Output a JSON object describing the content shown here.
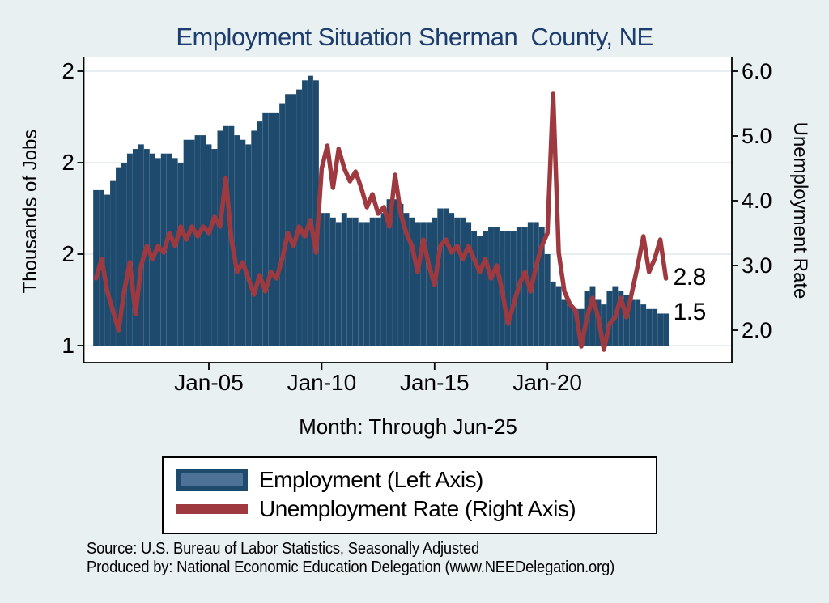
{
  "title": "Employment Situation Sherman  County, NE",
  "axes": {
    "left": {
      "title": "Thousands of Jobs",
      "ticks": [
        {
          "value": 2.0,
          "label": "2"
        },
        {
          "value": 1.8,
          "label": "2"
        },
        {
          "value": 1.6,
          "label": "2"
        },
        {
          "value": 1.4,
          "label": "1"
        }
      ]
    },
    "right": {
      "title": "Unemployment Rate",
      "ticks": [
        {
          "value": 6.0,
          "label": "6.0"
        },
        {
          "value": 5.0,
          "label": "5.0"
        },
        {
          "value": 4.0,
          "label": "4.0"
        },
        {
          "value": 3.0,
          "label": "3.0"
        },
        {
          "value": 2.0,
          "label": "2.0"
        }
      ]
    },
    "x": {
      "title": "Month: Through Jun-25",
      "ticks": [
        {
          "t": 2005,
          "label": "Jan-05"
        },
        {
          "t": 2010,
          "label": "Jan-10"
        },
        {
          "t": 2015,
          "label": "Jan-15"
        },
        {
          "t": 2020,
          "label": "Jan-20"
        }
      ]
    }
  },
  "annotations": {
    "unemployment_last": "2.8",
    "employment_last": "1.5"
  },
  "legend": {
    "employment_label": "Employment (Left Axis)",
    "unemployment_label": "Unemployment Rate (Right Axis)"
  },
  "footer": {
    "line1": "Source: U.S. Bureau of Labor Statistics, Seasonally Adjusted",
    "line2": "Produced by: National Economic Education Delegation (www.NEEDelegation.org)"
  },
  "colors": {
    "background": "#e9f0f2",
    "plot_background": "#ffffff",
    "gridline": "#dde8ee",
    "bar": "#1e4a6d",
    "bar_swatch_inner": "#4e7296",
    "line": "#9e3a3f",
    "title_text": "#1c3d6e",
    "axis_text": "#000000"
  },
  "chart_data": {
    "type": "combo",
    "title": "Employment Situation Sherman  County, NE",
    "xlabel": "Month: Through Jun-25",
    "x_tick_labels": [
      "Jan-05",
      "Jan-10",
      "Jan-15",
      "Jan-20"
    ],
    "period": "quarterly estimates read from monthly chart, 2000Q1 through 2025Q2",
    "x_start_year": 2000.0,
    "x_step_years": 0.25,
    "xlim": [
      1999.4,
      2028.2
    ],
    "ylim_left": [
      1.363,
      2.03
    ],
    "ylim_right": [
      1.5,
      6.21
    ],
    "grid": "horizontal, at left-axis ticks",
    "legend_position": "below chart",
    "series": [
      {
        "name": "Employment (Left Axis)",
        "type": "bar",
        "axis": "left",
        "ylabel": "Thousands of Jobs",
        "values": [
          1.74,
          1.74,
          1.73,
          1.76,
          1.79,
          1.8,
          1.82,
          1.83,
          1.84,
          1.83,
          1.82,
          1.81,
          1.82,
          1.82,
          1.81,
          1.8,
          1.85,
          1.85,
          1.86,
          1.86,
          1.84,
          1.83,
          1.87,
          1.88,
          1.88,
          1.86,
          1.85,
          1.84,
          1.87,
          1.89,
          1.91,
          1.91,
          1.91,
          1.93,
          1.95,
          1.95,
          1.96,
          1.98,
          1.99,
          1.98,
          1.69,
          1.69,
          1.68,
          1.67,
          1.69,
          1.68,
          1.68,
          1.67,
          1.67,
          1.68,
          1.68,
          1.69,
          1.72,
          1.72,
          1.71,
          1.69,
          1.68,
          1.67,
          1.67,
          1.67,
          1.68,
          1.7,
          1.7,
          1.69,
          1.68,
          1.68,
          1.67,
          1.65,
          1.64,
          1.65,
          1.66,
          1.66,
          1.65,
          1.65,
          1.65,
          1.66,
          1.66,
          1.67,
          1.67,
          1.66,
          1.6,
          1.54,
          1.53,
          1.5,
          1.49,
          1.48,
          1.48,
          1.52,
          1.53,
          1.5,
          1.49,
          1.52,
          1.53,
          1.52,
          1.51,
          1.5,
          1.5,
          1.49,
          1.48,
          1.48,
          1.47,
          1.47
        ]
      },
      {
        "name": "Unemployment Rate (Right Axis)",
        "type": "line",
        "axis": "right",
        "ylabel": "Unemployment Rate",
        "values": [
          2.8,
          3.1,
          2.6,
          2.3,
          2.0,
          2.6,
          3.05,
          2.25,
          3.0,
          3.3,
          3.1,
          3.3,
          3.2,
          3.5,
          3.3,
          3.6,
          3.4,
          3.6,
          3.45,
          3.6,
          3.5,
          3.75,
          3.6,
          4.35,
          3.4,
          2.9,
          3.05,
          2.8,
          2.55,
          2.85,
          2.6,
          2.9,
          2.8,
          3.1,
          3.5,
          3.3,
          3.6,
          3.45,
          3.7,
          3.2,
          4.5,
          4.85,
          4.2,
          4.8,
          4.5,
          4.3,
          4.45,
          4.2,
          3.9,
          4.1,
          3.8,
          3.9,
          3.6,
          4.4,
          3.8,
          3.5,
          3.3,
          2.9,
          3.4,
          3.0,
          2.7,
          3.3,
          3.4,
          3.2,
          3.3,
          3.1,
          3.3,
          3.1,
          2.9,
          3.1,
          2.8,
          3.0,
          2.6,
          2.1,
          2.4,
          2.7,
          2.9,
          2.6,
          3.0,
          3.3,
          3.5,
          5.65,
          3.2,
          2.6,
          2.4,
          2.3,
          1.75,
          2.2,
          2.5,
          2.2,
          1.7,
          2.1,
          2.2,
          2.5,
          2.2,
          2.6,
          3.0,
          3.45,
          2.9,
          3.1,
          3.4,
          2.8
        ]
      }
    ]
  }
}
